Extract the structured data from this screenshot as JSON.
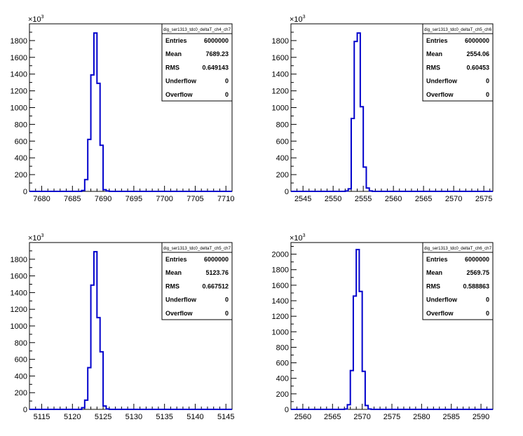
{
  "chart_data": [
    {
      "type": "bar",
      "title": "",
      "y_multiplier": "×10",
      "y_multiplier_exp": "3",
      "xlim": [
        7678,
        7711
      ],
      "x_ticks": [
        7680,
        7685,
        7690,
        7695,
        7700,
        7705,
        7710
      ],
      "ylim": [
        0,
        2000
      ],
      "y_ticks": [
        0,
        200,
        400,
        600,
        800,
        1000,
        1200,
        1400,
        1600,
        1800
      ],
      "bin_edges": [
        7686,
        7686.5,
        7687,
        7687.5,
        7688,
        7688.5,
        7689,
        7689.5,
        7690,
        7690.5,
        7691,
        7691.5
      ],
      "values": [
        0,
        10,
        140,
        620,
        1390,
        1890,
        1290,
        550,
        20,
        5,
        0
      ],
      "stats": {
        "name": "dig_ser1313_tdc0_deltaT_ch4_ch7",
        "rows": [
          {
            "label": "Entries",
            "value": "6000000"
          },
          {
            "label": "Mean",
            "value": "7689.23"
          },
          {
            "label": "RMS",
            "value": "0.649143"
          },
          {
            "label": "Underflow",
            "value": "0"
          },
          {
            "label": "Overflow",
            "value": "0"
          }
        ]
      }
    },
    {
      "type": "bar",
      "title": "",
      "y_multiplier": "×10",
      "y_multiplier_exp": "3",
      "xlim": [
        2543,
        2576.5
      ],
      "x_ticks": [
        2545,
        2550,
        2555,
        2560,
        2565,
        2570,
        2575
      ],
      "ylim": [
        0,
        2000
      ],
      "y_ticks": [
        0,
        200,
        400,
        600,
        800,
        1000,
        1200,
        1400,
        1600,
        1800
      ],
      "bin_edges": [
        2552,
        2552.5,
        2553,
        2553.5,
        2554,
        2554.5,
        2555,
        2555.5,
        2556,
        2556.5
      ],
      "values": [
        5,
        30,
        870,
        1790,
        1890,
        1010,
        290,
        40,
        5
      ],
      "stats": {
        "name": "dig_ser1313_tdc0_deltaT_ch5_ch6",
        "rows": [
          {
            "label": "Entries",
            "value": "6000000"
          },
          {
            "label": "Mean",
            "value": "2554.06"
          },
          {
            "label": "RMS",
            "value": "0.60453"
          },
          {
            "label": "Underflow",
            "value": "0"
          },
          {
            "label": "Overflow",
            "value": "0"
          }
        ]
      }
    },
    {
      "type": "bar",
      "title": "",
      "y_multiplier": "×10",
      "y_multiplier_exp": "3",
      "xlim": [
        5113,
        5146
      ],
      "x_ticks": [
        5115,
        5120,
        5125,
        5130,
        5135,
        5140,
        5145
      ],
      "ylim": [
        0,
        2000
      ],
      "y_ticks": [
        0,
        200,
        400,
        600,
        800,
        1000,
        1200,
        1400,
        1600,
        1800
      ],
      "bin_edges": [
        5121,
        5121.5,
        5122,
        5122.5,
        5123,
        5123.5,
        5124,
        5124.5,
        5125,
        5125.5,
        5126,
        5126.5
      ],
      "values": [
        0,
        20,
        110,
        500,
        1490,
        1890,
        1100,
        690,
        40,
        5,
        0
      ],
      "stats": {
        "name": "dig_ser1313_tdc0_deltaT_ch5_ch7",
        "rows": [
          {
            "label": "Entries",
            "value": "6000000"
          },
          {
            "label": "Mean",
            "value": "5123.76"
          },
          {
            "label": "RMS",
            "value": "0.667512"
          },
          {
            "label": "Underflow",
            "value": "0"
          },
          {
            "label": "Overflow",
            "value": "0"
          }
        ]
      }
    },
    {
      "type": "bar",
      "title": "",
      "y_multiplier": "×10",
      "y_multiplier_exp": "3",
      "xlim": [
        2558,
        2592
      ],
      "x_ticks": [
        2560,
        2565,
        2570,
        2575,
        2580,
        2585,
        2590
      ],
      "ylim": [
        0,
        2150
      ],
      "y_ticks": [
        0,
        200,
        400,
        600,
        800,
        1000,
        1200,
        1400,
        1600,
        1800,
        2000
      ],
      "bin_edges": [
        2567,
        2567.5,
        2568,
        2568.5,
        2569,
        2569.5,
        2570,
        2570.5,
        2571,
        2571.5,
        2572
      ],
      "values": [
        5,
        60,
        500,
        1460,
        2060,
        1520,
        490,
        50,
        5,
        0
      ],
      "stats": {
        "name": "dig_ser1313_tdc0_deltaT_ch6_ch7",
        "rows": [
          {
            "label": "Entries",
            "value": "6000000"
          },
          {
            "label": "Mean",
            "value": "2569.75"
          },
          {
            "label": "RMS",
            "value": "0.588863"
          },
          {
            "label": "Underflow",
            "value": "0"
          },
          {
            "label": "Overflow",
            "value": "0"
          }
        ]
      }
    }
  ]
}
